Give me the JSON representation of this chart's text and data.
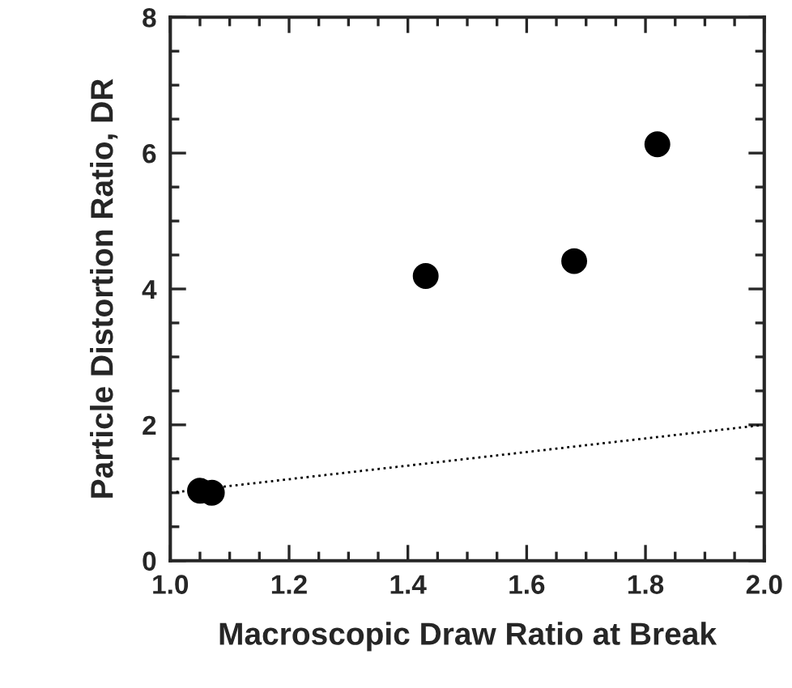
{
  "chart_data": {
    "type": "scatter",
    "xlabel": "Macroscopic Draw Ratio at Break",
    "ylabel": "Particle Distortion Ratio, DR",
    "xlim": [
      1.0,
      2.0
    ],
    "xticks": [
      {
        "value": 1.0,
        "label": "1.0"
      },
      1.2,
      1.4,
      1.6,
      1.8,
      {
        "value": 2.0,
        "label": "2.0"
      }
    ],
    "ylim": [
      0,
      8
    ],
    "yticks": [
      0,
      2,
      4,
      6,
      8
    ],
    "grid": false,
    "series": [
      {
        "color": "#000000",
        "marker": "circle",
        "x": [
          1.05,
          1.07,
          1.43,
          1.68,
          1.82
        ],
        "values": [
          1.03,
          1.0,
          4.19,
          4.41,
          6.13
        ]
      },
      {
        "type": "line",
        "color": "#000000",
        "line_style": "dotted",
        "marker": "none",
        "x": [
          1.0,
          2.0
        ],
        "values": [
          1.0,
          2.0
        ]
      }
    ]
  }
}
